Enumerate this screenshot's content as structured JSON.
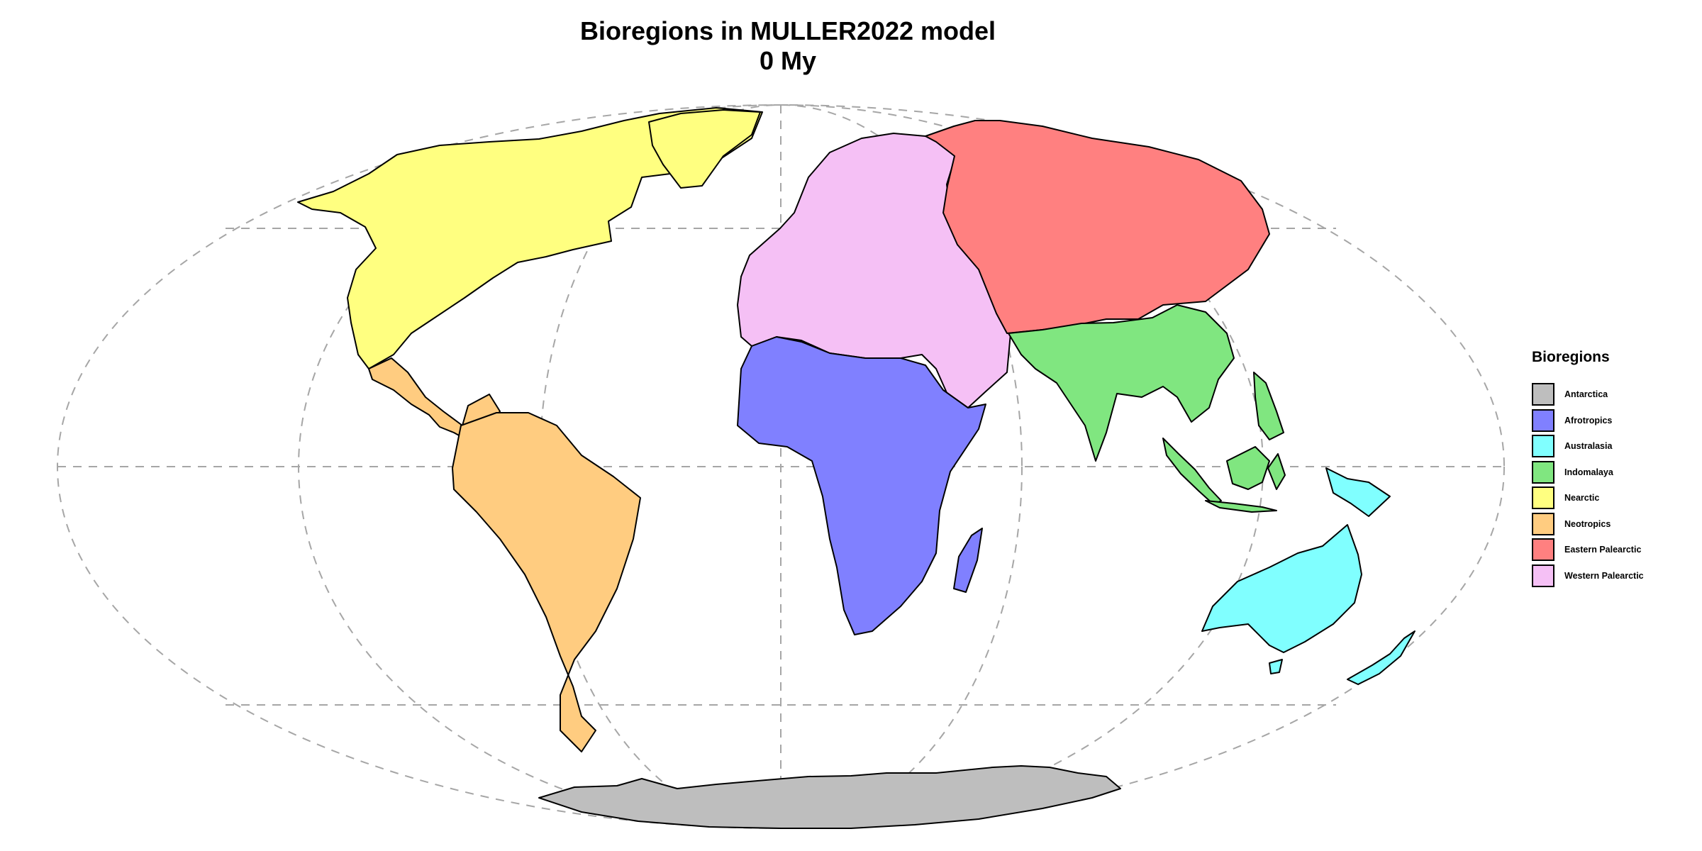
{
  "title": {
    "line1": "Bioregions in MULLER2022 model",
    "line2": "0 My"
  },
  "legend": {
    "title": "Bioregions",
    "items": [
      {
        "key": "antarctica",
        "label": "Antarctica",
        "color": "#bebebe"
      },
      {
        "key": "afrotropics",
        "label": "Afrotropics",
        "color": "#8080ff"
      },
      {
        "key": "australasia",
        "label": "Australasia",
        "color": "#80ffff"
      },
      {
        "key": "indomalaya",
        "label": "Indomalaya",
        "color": "#80e680"
      },
      {
        "key": "nearctic",
        "label": "Nearctic",
        "color": "#ffff80"
      },
      {
        "key": "neotropics",
        "label": "Neotropics",
        "color": "#ffcc80"
      },
      {
        "key": "eastern_palearctic",
        "label": "Eastern Palearctic",
        "color": "#ff8080"
      },
      {
        "key": "western_palearctic",
        "label": "Western Palearctic",
        "color": "#f5c0f5"
      }
    ]
  },
  "map": {
    "projection": "Mollweide",
    "graticule_style": "dashed grey",
    "grid_color": "#a6a6a6",
    "outline_color": "#000000"
  }
}
